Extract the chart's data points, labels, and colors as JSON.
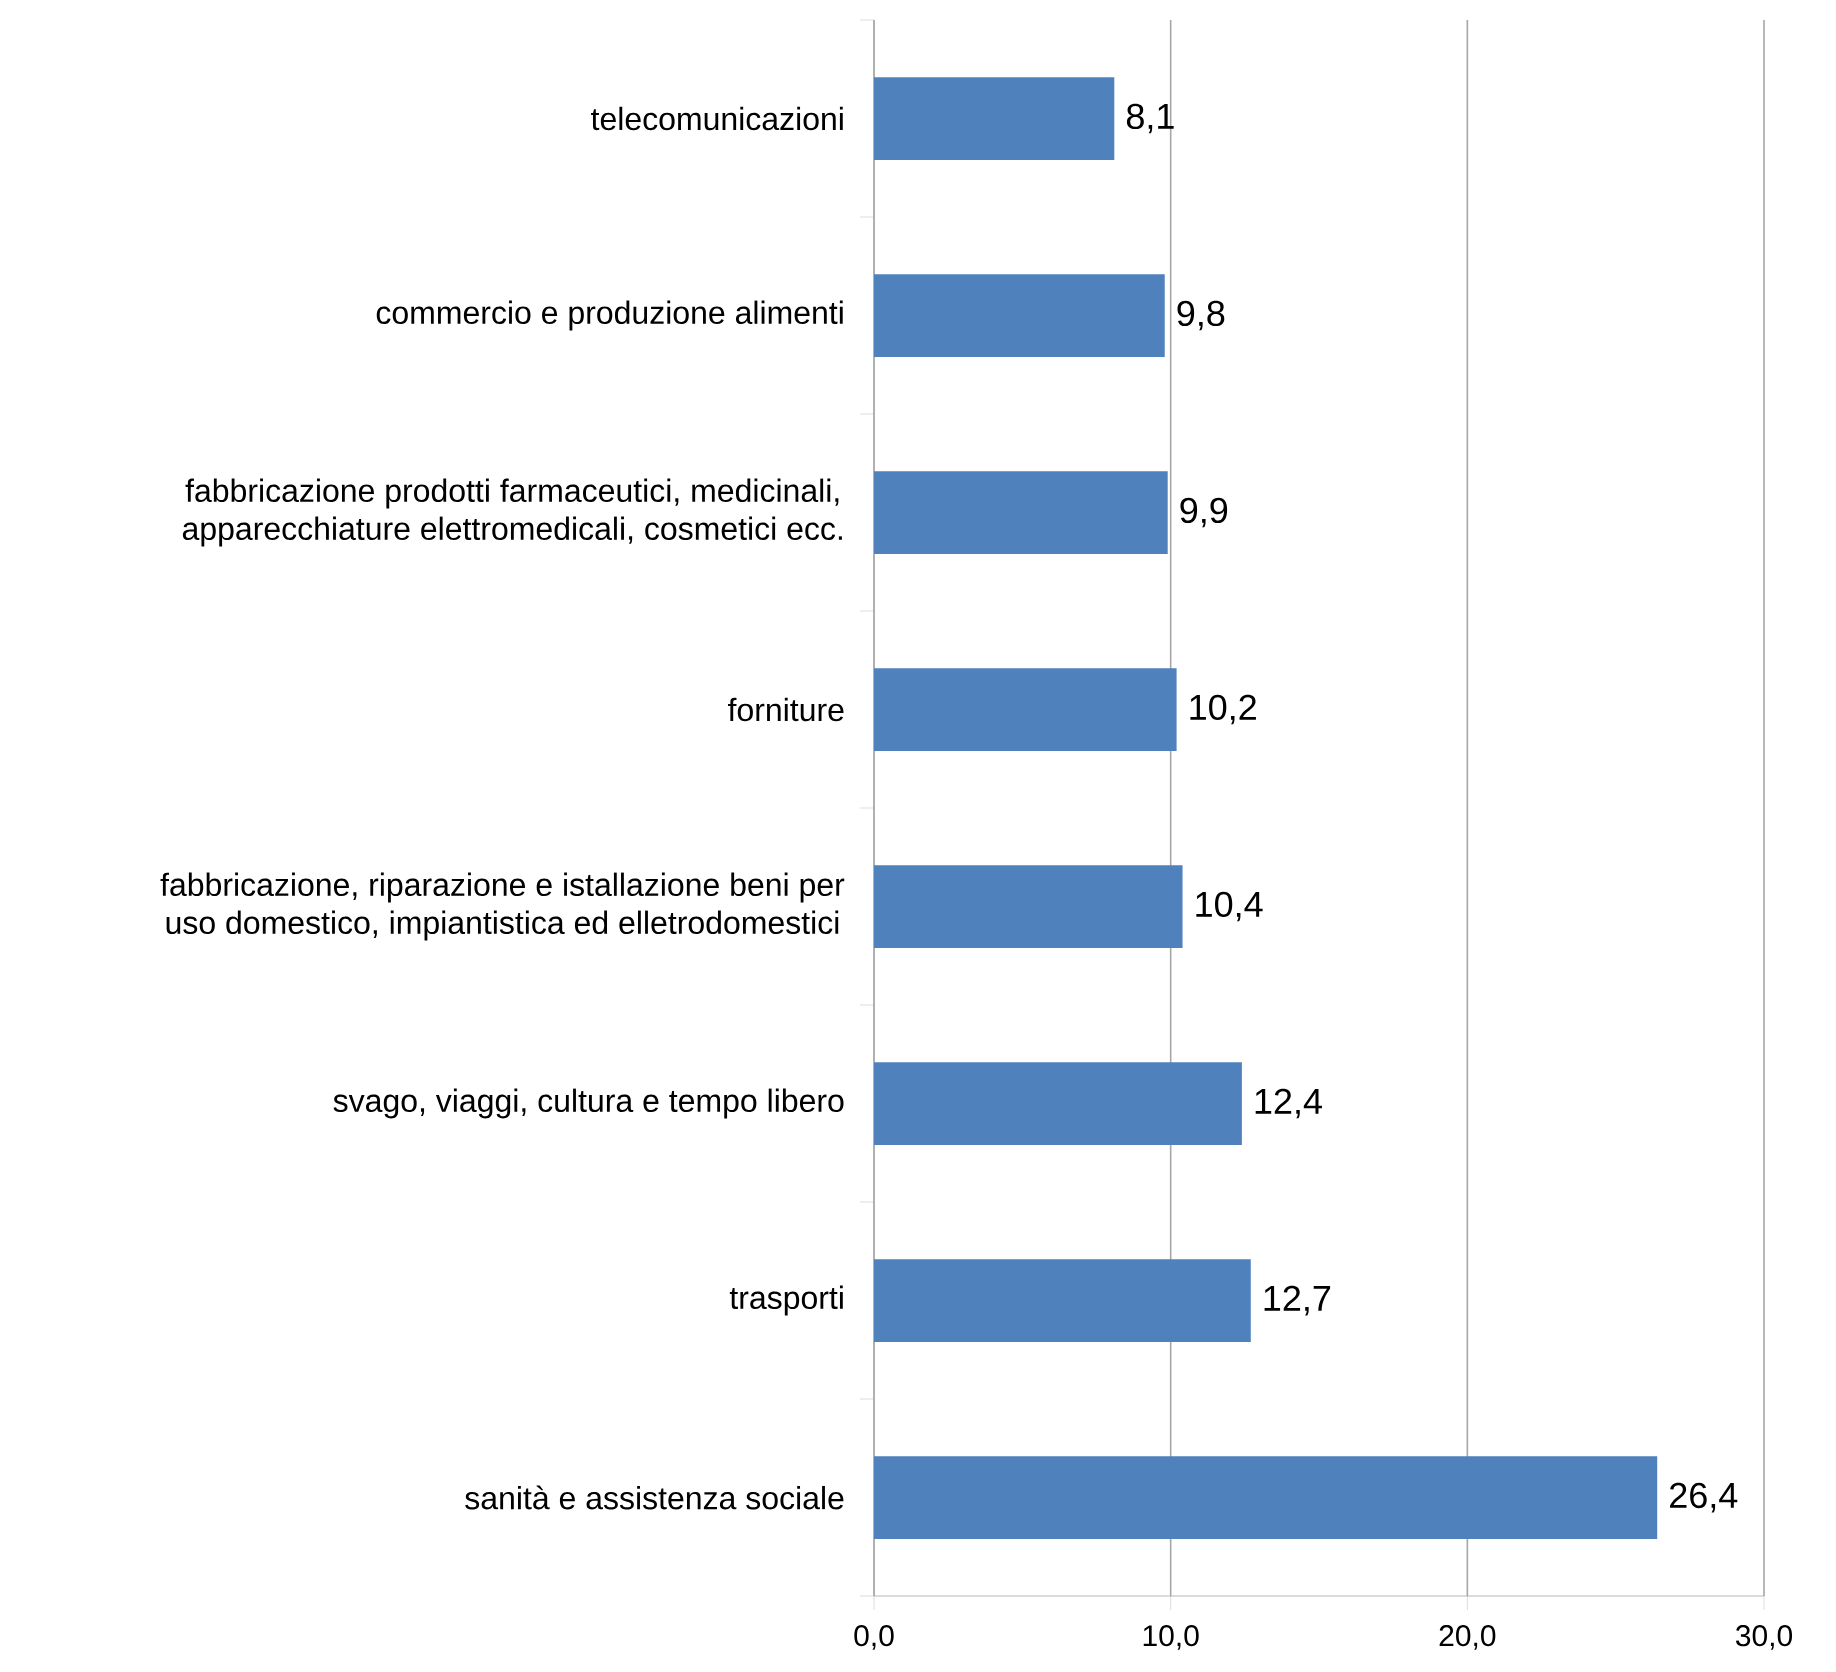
{
  "chart_data": {
    "type": "bar",
    "orientation": "horizontal",
    "categories": [
      "telecomunicazioni",
      "commercio e produzione alimenti",
      "fabbricazione prodotti farmaceutici, medicinali, apparecchiature elettromedicali, cosmetici ecc.",
      "forniture",
      "fabbricazione, riparazione e istallazione beni per uso domestico, impiantistica ed elletrodomestici",
      "svago, viaggi, cultura e tempo libero",
      "trasporti",
      "sanità e assistenza sociale"
    ],
    "values": [
      8.1,
      9.8,
      9.9,
      10.2,
      10.4,
      12.4,
      12.7,
      26.4
    ],
    "value_labels": [
      "8,1",
      "9,8",
      "9,9",
      "10,2",
      "10,4",
      "12,4",
      "12,7",
      "26,4"
    ],
    "color": "#4f81bd",
    "xlim": [
      0,
      30
    ],
    "xticks": [
      {
        "value": 0,
        "label": "0,0"
      },
      {
        "value": 10,
        "label": "10,0"
      },
      {
        "value": 20,
        "label": "20,0"
      },
      {
        "value": 30,
        "label": "30,0"
      }
    ],
    "grid": "x"
  }
}
